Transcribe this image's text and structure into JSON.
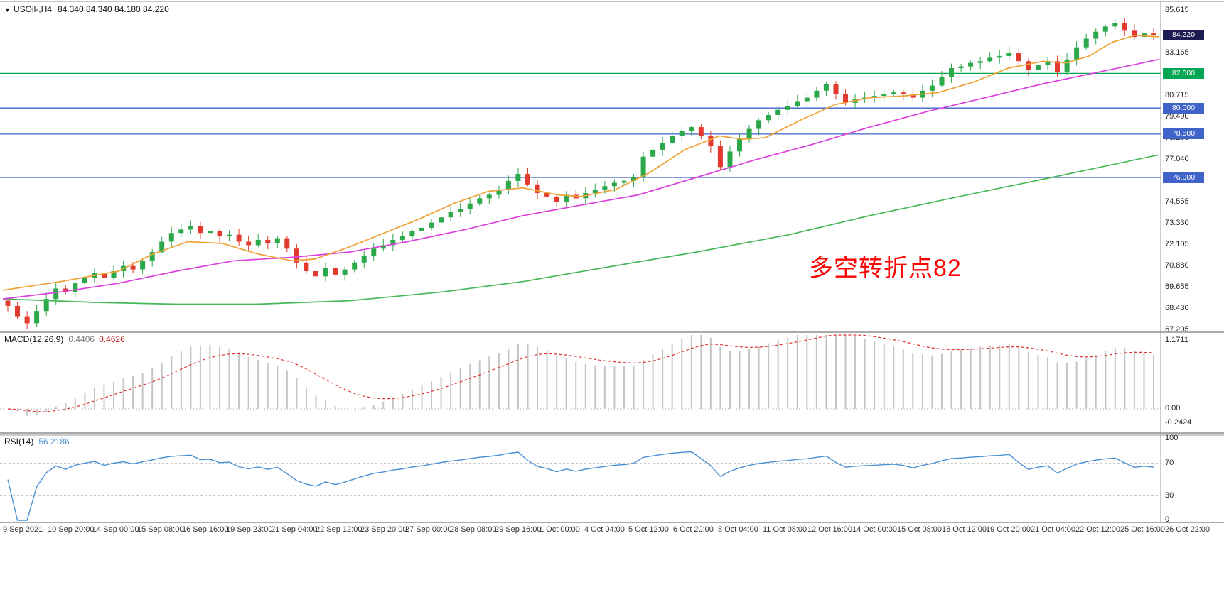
{
  "header": {
    "collapse_icon": "▼",
    "symbol_timeframe": "USOil-,H4",
    "ohlc": "84.340 84.340 84.180 84.220"
  },
  "annotation": {
    "text": "多空转折点82",
    "color": "#ff0000"
  },
  "indicators": {
    "macd": {
      "label": "MACD(12,26,9)",
      "main_value": "0.4406",
      "signal_value": "0.4626",
      "axis": [
        {
          "text": "1.1711",
          "value": 1.1711
        },
        {
          "text": "0.00",
          "value": 0
        },
        {
          "text": "-0.2424",
          "value": -0.2424
        }
      ]
    },
    "rsi": {
      "label": "RSI(14)",
      "value": "56.2186",
      "axis": [
        {
          "text": "100",
          "value": 100
        },
        {
          "text": "70",
          "value": 70
        },
        {
          "text": "30",
          "value": 30
        },
        {
          "text": "0",
          "value": 0
        }
      ],
      "guides": [
        70,
        30
      ]
    }
  },
  "price_axis_ticks": [
    85.615,
    83.165,
    80.715,
    79.49,
    78.265,
    77.04,
    75.78,
    74.555,
    73.33,
    72.105,
    70.88,
    69.655,
    68.43,
    67.205
  ],
  "time_axis": [
    "9 Sep 2021",
    "10 Sep 20:00",
    "14 Sep 00:00",
    "15 Sep 08:00",
    "16 Sep 16:00",
    "19 Sep 23:00",
    "21 Sep 04:00",
    "22 Sep 12:00",
    "23 Sep 20:00",
    "27 Sep 00:00",
    "28 Sep 08:00",
    "29 Sep 16:00",
    "1 Oct 00:00",
    "4 Oct 04:00",
    "5 Oct 12:00",
    "6 Oct 20:00",
    "8 Oct 04:00",
    "11 Oct 08:00",
    "12 Oct 16:00",
    "14 Oct 00:00",
    "15 Oct 08:00",
    "18 Oct 12:00",
    "19 Oct 20:00",
    "21 Oct 04:00",
    "22 Oct 12:00",
    "25 Oct 16:00",
    "26 Oct 22:00"
  ],
  "chart_data": {
    "type": "candlestick",
    "symbol": "USOil-",
    "timeframe": "H4",
    "title": "USOil-,H4",
    "ohlc_display": {
      "open": "84.340",
      "high": "84.340",
      "low": "84.180",
      "close": "84.220"
    },
    "price_range": {
      "min": 67.205,
      "max": 85.615
    },
    "first_open": 68.9,
    "closes": [
      68.6,
      68.0,
      67.6,
      68.3,
      69.0,
      69.6,
      69.4,
      69.9,
      70.2,
      70.5,
      70.2,
      70.6,
      70.9,
      70.7,
      71.2,
      71.7,
      72.3,
      72.8,
      73.0,
      73.2,
      72.8,
      72.9,
      72.6,
      72.7,
      72.3,
      72.1,
      72.4,
      72.2,
      72.5,
      71.9,
      71.1,
      70.6,
      70.3,
      70.8,
      70.4,
      70.7,
      71.1,
      71.5,
      71.9,
      72.1,
      72.4,
      72.6,
      72.9,
      73.1,
      73.4,
      73.7,
      74.0,
      74.2,
      74.5,
      74.8,
      75.0,
      75.3,
      75.8,
      76.2,
      75.6,
      75.1,
      74.9,
      74.6,
      75.0,
      74.8,
      75.1,
      75.3,
      75.5,
      75.7,
      75.8,
      76.0,
      77.2,
      77.6,
      78.0,
      78.4,
      78.7,
      78.9,
      78.4,
      77.8,
      76.6,
      77.5,
      78.2,
      78.8,
      79.3,
      79.6,
      79.9,
      80.1,
      80.4,
      80.6,
      81.0,
      81.4,
      80.8,
      80.3,
      80.5,
      80.6,
      80.7,
      80.8,
      80.9,
      80.8,
      80.6,
      81.0,
      81.3,
      81.8,
      82.3,
      82.4,
      82.6,
      82.7,
      82.9,
      83.0,
      83.2,
      82.7,
      82.2,
      82.5,
      82.7,
      82.1,
      82.8,
      83.5,
      84.0,
      84.4,
      84.7,
      84.9,
      84.5,
      84.1,
      84.3,
      84.22
    ],
    "levels": [
      {
        "price": 84.22,
        "label": "84.220",
        "color": "#1c1c52",
        "line": false,
        "role": "current-price"
      },
      {
        "price": 82.0,
        "label": "82.000",
        "color": "#00a651",
        "line": true,
        "role": "pivot-level"
      },
      {
        "price": 80.0,
        "label": "80.000",
        "color": "#3f63c9",
        "line": true,
        "role": "support-level"
      },
      {
        "price": 78.5,
        "label": "78.500",
        "color": "#3f63c9",
        "line": true,
        "role": "support-level"
      },
      {
        "price": 76.0,
        "label": "76.000",
        "color": "#3f63c9",
        "line": true,
        "role": "support-level"
      }
    ],
    "moving_averages": [
      {
        "name": "ma-slow",
        "color": "#46b858",
        "points": [
          [
            0,
            69.0
          ],
          [
            0.08,
            68.8
          ],
          [
            0.15,
            68.7
          ],
          [
            0.22,
            68.7
          ],
          [
            0.3,
            68.9
          ],
          [
            0.38,
            69.4
          ],
          [
            0.45,
            70.0
          ],
          [
            0.52,
            70.8
          ],
          [
            0.6,
            71.7
          ],
          [
            0.68,
            72.7
          ],
          [
            0.75,
            73.8
          ],
          [
            0.82,
            74.8
          ],
          [
            0.9,
            75.9
          ],
          [
            1,
            77.3
          ]
        ]
      },
      {
        "name": "ma-mid",
        "color": "#dd3fdd",
        "points": [
          [
            0,
            69.0
          ],
          [
            0.05,
            69.4
          ],
          [
            0.1,
            69.9
          ],
          [
            0.15,
            70.6
          ],
          [
            0.2,
            71.2
          ],
          [
            0.25,
            71.4
          ],
          [
            0.3,
            71.7
          ],
          [
            0.35,
            72.3
          ],
          [
            0.4,
            73.0
          ],
          [
            0.45,
            73.8
          ],
          [
            0.5,
            74.4
          ],
          [
            0.55,
            75.0
          ],
          [
            0.6,
            76.0
          ],
          [
            0.65,
            77.0
          ],
          [
            0.7,
            77.9
          ],
          [
            0.75,
            78.9
          ],
          [
            0.8,
            79.8
          ],
          [
            0.85,
            80.6
          ],
          [
            0.9,
            81.4
          ],
          [
            0.95,
            82.1
          ],
          [
            1,
            82.8
          ]
        ]
      },
      {
        "name": "ma-fast",
        "color": "#f0a135",
        "points": [
          [
            0,
            69.5
          ],
          [
            0.05,
            70.0
          ],
          [
            0.1,
            70.6
          ],
          [
            0.13,
            71.6
          ],
          [
            0.16,
            72.3
          ],
          [
            0.19,
            72.2
          ],
          [
            0.22,
            71.6
          ],
          [
            0.25,
            71.2
          ],
          [
            0.27,
            71.3
          ],
          [
            0.3,
            72.0
          ],
          [
            0.33,
            72.8
          ],
          [
            0.36,
            73.6
          ],
          [
            0.39,
            74.5
          ],
          [
            0.42,
            75.2
          ],
          [
            0.45,
            75.4
          ],
          [
            0.48,
            75.0
          ],
          [
            0.5,
            74.9
          ],
          [
            0.53,
            75.3
          ],
          [
            0.56,
            76.3
          ],
          [
            0.59,
            77.6
          ],
          [
            0.62,
            78.4
          ],
          [
            0.64,
            78.2
          ],
          [
            0.66,
            78.3
          ],
          [
            0.69,
            79.3
          ],
          [
            0.72,
            80.2
          ],
          [
            0.75,
            80.6
          ],
          [
            0.78,
            80.7
          ],
          [
            0.81,
            80.9
          ],
          [
            0.84,
            81.5
          ],
          [
            0.87,
            82.3
          ],
          [
            0.9,
            82.7
          ],
          [
            0.92,
            82.6
          ],
          [
            0.94,
            83.0
          ],
          [
            0.96,
            83.8
          ],
          [
            0.98,
            84.2
          ],
          [
            1,
            84.1
          ]
        ]
      }
    ],
    "colors": {
      "bull": "#2ba84a",
      "bear": "#e23a2e",
      "macd_hist": "#c4c4c4",
      "macd_signal": "#e03030",
      "rsi_line": "#4a8fd3",
      "guide_gray": "#c9c9c9"
    },
    "macd_params": [
      12,
      26,
      9
    ],
    "rsi_period": 14
  }
}
